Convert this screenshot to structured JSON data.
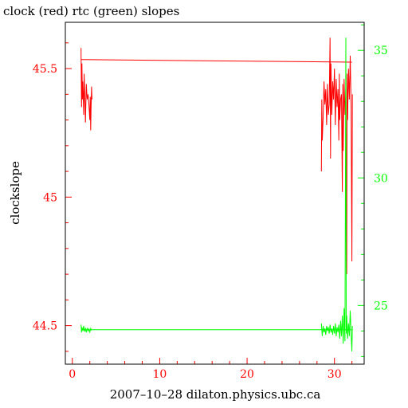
{
  "chart_data": {
    "type": "line",
    "title": "clock (red) rtc (green) slopes",
    "xlabel": "2007–10–28 dilaton.physics.ubc.ca",
    "ylabel": "clockslope",
    "ylabel_right": "",
    "xlim": [
      -0.8,
      33.4
    ],
    "ylim": [
      44.35,
      45.68
    ],
    "y2lim": [
      22.7,
      36.1
    ],
    "x_ticks": [
      0,
      10,
      20,
      30
    ],
    "y_ticks": [
      44.5,
      45,
      45.5
    ],
    "y_tick_labels": [
      "44.5",
      "45",
      "45.5"
    ],
    "y2_ticks": [
      25,
      30,
      35
    ],
    "grid": false,
    "colors": {
      "clock": "#ff0000",
      "rtc": "#00ff00",
      "axes": "#000000"
    },
    "series": [
      {
        "name": "clock",
        "axis": "left",
        "color": "#ff0000",
        "segments": [
          [
            [
              1.0,
              45.58
            ],
            [
              1.05,
              45.35
            ],
            [
              1.1,
              45.52
            ],
            [
              1.15,
              45.38
            ],
            [
              1.2,
              45.45
            ],
            [
              1.3,
              45.32
            ],
            [
              1.35,
              45.48
            ],
            [
              1.45,
              45.36
            ],
            [
              1.5,
              45.29
            ],
            [
              1.6,
              45.44
            ],
            [
              1.7,
              45.38
            ],
            [
              1.8,
              45.4
            ],
            [
              1.9,
              45.36
            ],
            [
              2.0,
              45.3
            ],
            [
              2.05,
              45.39
            ],
            [
              2.1,
              45.26
            ],
            [
              2.15,
              45.35
            ],
            [
              2.2,
              45.43
            ],
            [
              2.25,
              45.38
            ]
          ],
          [
            [
              28.5,
              45.1
            ],
            [
              28.55,
              45.38
            ],
            [
              28.6,
              45.22
            ],
            [
              28.7,
              45.31
            ],
            [
              28.8,
              45.45
            ],
            [
              28.9,
              45.36
            ],
            [
              29.0,
              45.42
            ],
            [
              29.1,
              45.28
            ],
            [
              29.2,
              45.44
            ],
            [
              29.3,
              45.32
            ],
            [
              29.4,
              45.36
            ],
            [
              29.5,
              45.62
            ],
            [
              29.55,
              45.15
            ],
            [
              29.6,
              45.52
            ],
            [
              29.7,
              45.32
            ],
            [
              29.8,
              45.45
            ],
            [
              29.9,
              45.38
            ],
            [
              30.0,
              45.5
            ],
            [
              30.1,
              45.28
            ],
            [
              30.2,
              45.46
            ],
            [
              30.3,
              45.35
            ],
            [
              30.4,
              45.42
            ],
            [
              30.5,
              45.22
            ],
            [
              30.55,
              45.48
            ],
            [
              30.6,
              45.3
            ],
            [
              30.7,
              45.38
            ],
            [
              30.8,
              45.4
            ],
            [
              30.9,
              45.02
            ],
            [
              30.95,
              45.44
            ],
            [
              31.0,
              45.18
            ],
            [
              31.1,
              45.46
            ],
            [
              31.2,
              45.32
            ],
            [
              31.3,
              45.42
            ],
            [
              31.4,
              44.7
            ],
            [
              31.45,
              45.48
            ],
            [
              31.5,
              45.3
            ],
            [
              31.6,
              45.5
            ],
            [
              31.7,
              45.38
            ],
            [
              31.8,
              45.55
            ],
            [
              31.9,
              45.35
            ],
            [
              32.0,
              44.75
            ],
            [
              32.05,
              45.4
            ]
          ]
        ],
        "flat": [
          [
            1.0,
            45.535
          ],
          [
            32.0,
            45.525
          ]
        ]
      },
      {
        "name": "rtc",
        "axis": "right",
        "color": "#00ff00",
        "segments": [
          [
            [
              1.0,
              24.25
            ],
            [
              1.05,
              23.95
            ],
            [
              1.1,
              24.15
            ],
            [
              1.2,
              24.0
            ],
            [
              1.3,
              24.2
            ],
            [
              1.4,
              23.98
            ],
            [
              1.5,
              24.1
            ],
            [
              1.6,
              23.95
            ],
            [
              1.7,
              24.12
            ],
            [
              1.8,
              24.0
            ],
            [
              1.9,
              24.08
            ],
            [
              2.0,
              23.96
            ],
            [
              2.1,
              24.1
            ],
            [
              2.2,
              24.02
            ]
          ],
          [
            [
              28.5,
              24.3
            ],
            [
              28.6,
              23.8
            ],
            [
              28.7,
              24.2
            ],
            [
              28.8,
              23.95
            ],
            [
              28.9,
              24.1
            ],
            [
              29.0,
              23.85
            ],
            [
              29.1,
              24.2
            ],
            [
              29.2,
              24.0
            ],
            [
              29.3,
              24.15
            ],
            [
              29.4,
              23.9
            ],
            [
              29.5,
              24.25
            ],
            [
              29.6,
              23.95
            ],
            [
              29.7,
              24.1
            ],
            [
              29.8,
              23.85
            ],
            [
              29.9,
              24.2
            ],
            [
              30.0,
              23.9
            ],
            [
              30.1,
              24.3
            ],
            [
              30.2,
              23.8
            ],
            [
              30.3,
              24.15
            ],
            [
              30.4,
              23.95
            ],
            [
              30.5,
              24.25
            ],
            [
              30.6,
              23.7
            ],
            [
              30.7,
              24.4
            ],
            [
              30.8,
              23.8
            ],
            [
              30.9,
              24.6
            ],
            [
              31.0,
              23.5
            ],
            [
              31.1,
              24.9
            ],
            [
              31.2,
              23.6
            ],
            [
              31.3,
              35.5
            ],
            [
              31.35,
              23.9
            ],
            [
              31.4,
              24.6
            ],
            [
              31.5,
              23.7
            ],
            [
              31.6,
              24.3
            ],
            [
              31.7,
              23.8
            ],
            [
              31.8,
              24.8
            ],
            [
              31.9,
              23.9
            ],
            [
              32.0,
              23.2
            ],
            [
              32.05,
              24.2
            ]
          ]
        ],
        "flat": [
          [
            1.0,
            24.05
          ],
          [
            32.0,
            24.05
          ]
        ]
      }
    ]
  }
}
